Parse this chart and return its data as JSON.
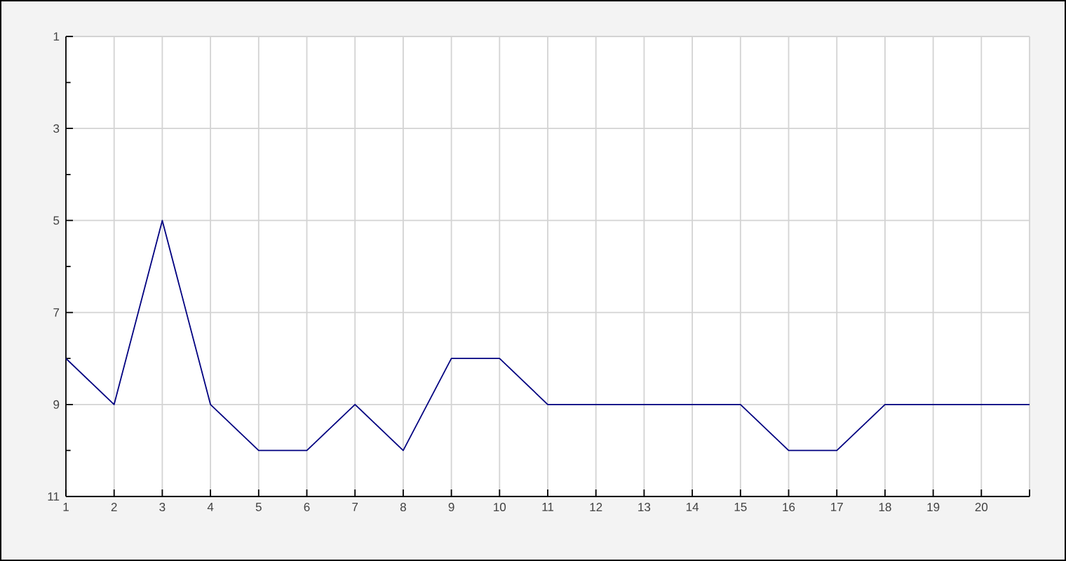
{
  "chart_data": {
    "type": "line",
    "x": [
      1,
      2,
      3,
      4,
      5,
      6,
      7,
      8,
      9,
      10,
      11,
      12,
      13,
      14,
      15,
      16,
      17,
      18,
      19,
      20,
      21
    ],
    "series": [
      {
        "color": "#000080",
        "values": [
          8,
          9,
          5,
          9,
          10,
          10,
          9,
          10,
          8,
          8,
          9,
          9,
          9,
          9,
          9,
          10,
          10,
          9,
          9,
          9,
          9
        ]
      }
    ],
    "xlim": [
      1,
      21
    ],
    "xticks": [
      1,
      2,
      3,
      4,
      5,
      6,
      7,
      8,
      9,
      10,
      11,
      12,
      13,
      14,
      15,
      16,
      17,
      18,
      19,
      20,
      {
        "value": 21,
        "label": null
      }
    ],
    "ylim": [
      11,
      1
    ],
    "yticks": [
      1,
      {
        "value": 2,
        "label": null
      },
      3,
      {
        "value": 4,
        "label": null
      },
      5,
      {
        "value": 6,
        "label": null
      },
      7,
      {
        "value": 8,
        "label": null
      },
      9,
      {
        "value": 10,
        "label": null
      },
      11
    ],
    "grid": true,
    "line_style": "solid"
  }
}
